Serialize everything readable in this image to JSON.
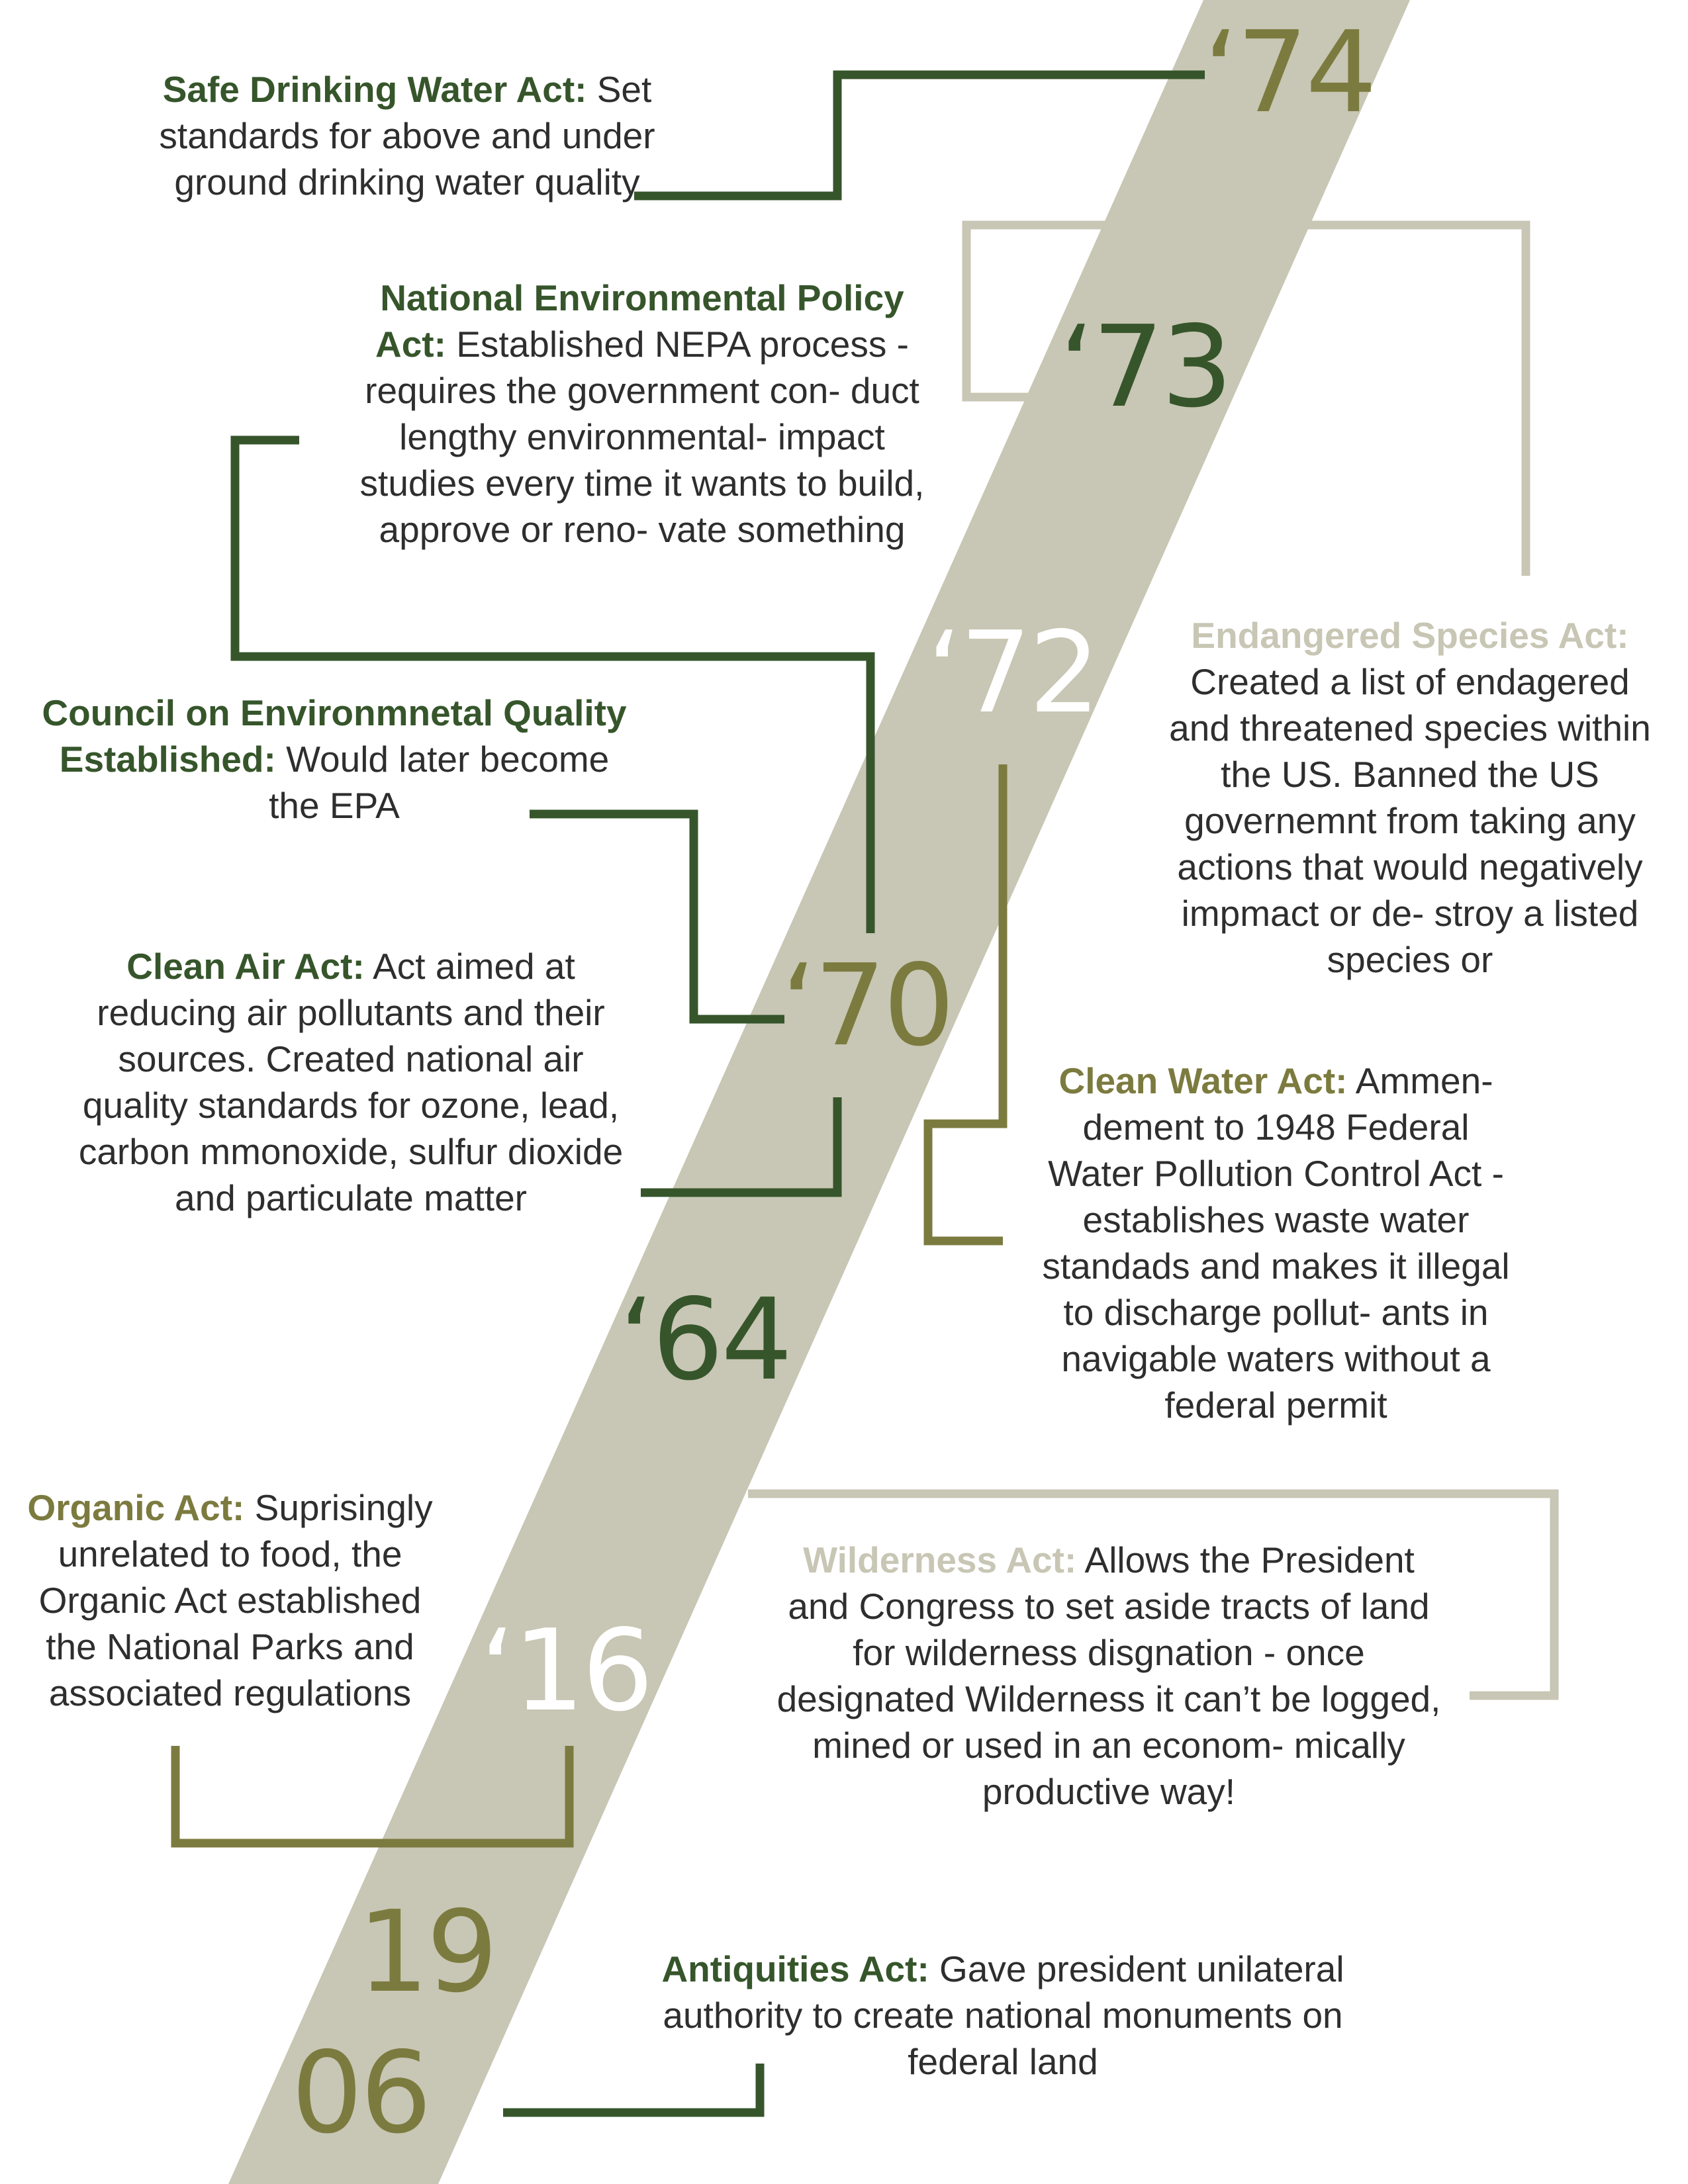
{
  "colors": {
    "band": "#c8c6b4",
    "dark_green": "#36552b",
    "olive": "#7c7b3f",
    "light_khaki": "#c8c6b4",
    "white": "#ffffff",
    "text": "#2e2e2e"
  },
  "years": {
    "y74": "‘74",
    "y73": "‘73",
    "y72": "‘72",
    "y70": "‘70",
    "y64": "‘64",
    "y16": "‘16",
    "y1906_top": "19",
    "y1906_bottom": "06"
  },
  "entries": {
    "safe_drinking_water": {
      "title": "Safe Drinking Water Act:",
      "text": " Set standards for above and under ground drinking water quality"
    },
    "nepa": {
      "title": "National Environmental Policy Act:",
      "text": " Established NEPA process - requires the government con- duct lengthy environmental- impact studies every time it wants to build, approve or reno- vate something"
    },
    "endangered_species": {
      "title": "Endangered Species Act:",
      "text": " Created a list of endagered and threatened species within the US. Banned the US governemnt from taking any actions that would negatively impmact or de- stroy a listed species or"
    },
    "council": {
      "title": "Council on Environmnetal Quality Established:",
      "text": " Would later become the EPA"
    },
    "clean_air": {
      "title": "Clean Air Act:",
      "text": " Act aimed at reducing air pollutants and their sources. Created national air quality standards for ozone, lead, carbon mmonoxide, sulfur dioxide and particulate matter"
    },
    "clean_water": {
      "title": "Clean Water Act:",
      "text": " Ammen- dement to 1948 Federal Water Pollution Control Act - establishes waste water standads and makes it illegal to discharge pollut- ants in navigable waters without a federal permit"
    },
    "organic": {
      "title": "Organic Act:",
      "text": " Suprisingly unrelated to food, the Organic Act established the National Parks and associated regulations"
    },
    "wilderness": {
      "title": "Wilderness Act:",
      "text": " Allows the President and Congress to set aside tracts of land for wilderness disgnation - once designated Wilderness it can’t be logged, mined or used in an econom- mically productive way!"
    },
    "antiquities": {
      "title": "Antiquities Act:",
      "text": " Gave president unilateral authority to create national monuments on federal land"
    }
  }
}
